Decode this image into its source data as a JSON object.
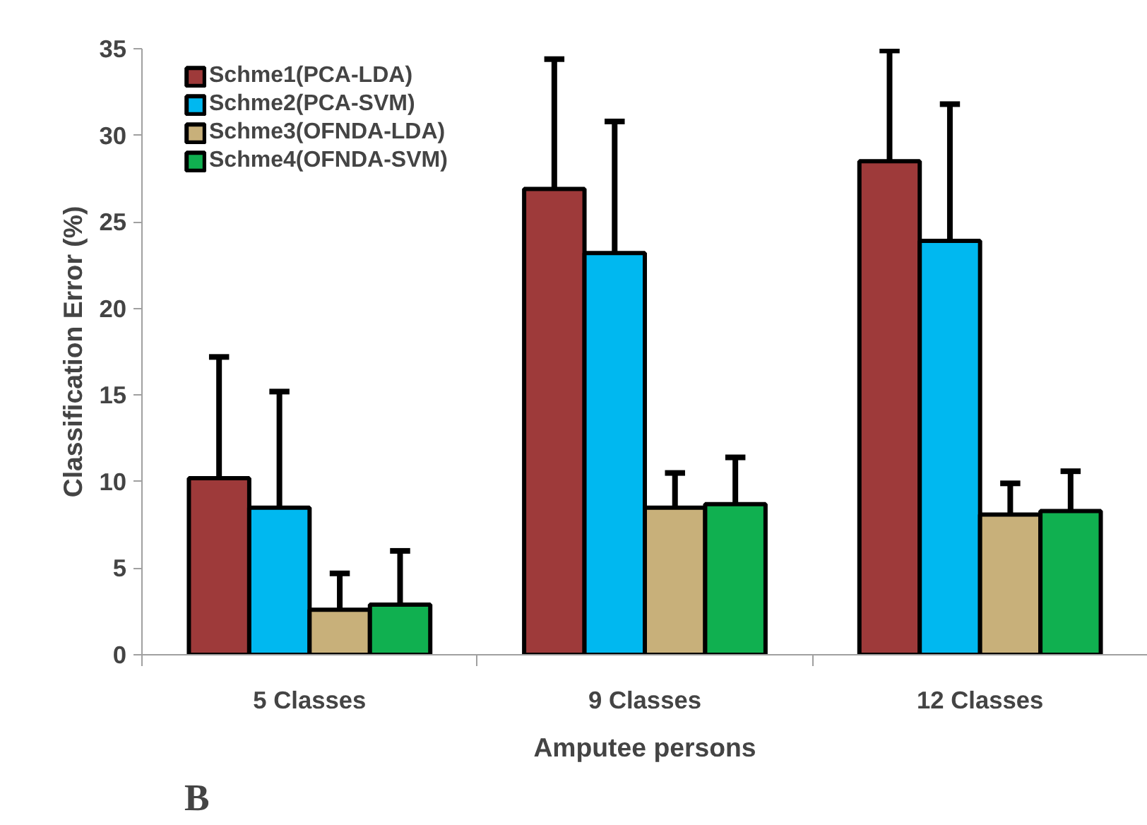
{
  "chart_data": {
    "type": "bar",
    "xlabel": "Amputee persons",
    "ylabel": "Classification Error (%)",
    "categories": [
      "5 Classes",
      "9 Classes",
      "12 Classes"
    ],
    "series": [
      {
        "name": "Schme1(PCA-LDA)",
        "color": "#9e3a3a",
        "values": [
          10.2,
          26.9,
          28.5
        ],
        "errors": [
          [
            10.2,
            17.2
          ],
          [
            26.9,
            34.4
          ],
          [
            28.5,
            34.9
          ]
        ]
      },
      {
        "name": "Schme2(PCA-SVM)",
        "color": "#00b8f0",
        "values": [
          8.5,
          23.2,
          23.9
        ],
        "errors": [
          [
            8.5,
            15.2
          ],
          [
            23.2,
            30.8
          ],
          [
            23.9,
            31.8
          ]
        ]
      },
      {
        "name": "Schme3(OFNDA-LDA)",
        "color": "#c8b07a",
        "values": [
          2.6,
          8.5,
          8.1
        ],
        "errors": [
          [
            2.6,
            4.7
          ],
          [
            8.5,
            10.5
          ],
          [
            8.1,
            9.9
          ]
        ]
      },
      {
        "name": "Schme4(OFNDA-SVM)",
        "color": "#10b050",
        "values": [
          2.9,
          8.7,
          8.3
        ],
        "errors": [
          [
            2.9,
            6.0
          ],
          [
            8.7,
            11.4
          ],
          [
            8.3,
            10.6
          ]
        ]
      }
    ],
    "ylim": [
      0,
      35
    ],
    "yticks": [
      0,
      5,
      10,
      15,
      20,
      25,
      30,
      35
    ],
    "grid": false,
    "legend": "top left",
    "annotations": [
      "B"
    ]
  }
}
